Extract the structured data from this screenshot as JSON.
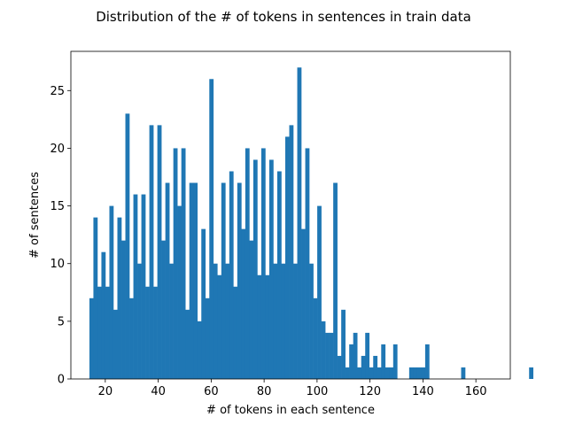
{
  "chart_data": {
    "type": "bar",
    "title": "Distribution of the # of tokens in sentences in train data",
    "xlabel": "# of tokens in each sentence",
    "ylabel": "# of sentences",
    "xlim": [
      7,
      173
    ],
    "ylim": [
      0,
      28.4
    ],
    "xticks": [
      20,
      40,
      60,
      80,
      100,
      120,
      140,
      160
    ],
    "yticks": [
      0,
      5,
      10,
      15,
      20,
      25
    ],
    "grid": false,
    "bin_start": 14,
    "bin_width": 1.51,
    "values": [
      7,
      14,
      8,
      11,
      8,
      15,
      6,
      14,
      12,
      23,
      7,
      16,
      10,
      16,
      8,
      22,
      8,
      22,
      12,
      17,
      10,
      20,
      15,
      20,
      6,
      17,
      17,
      5,
      13,
      7,
      26,
      10,
      9,
      17,
      10,
      18,
      8,
      17,
      13,
      20,
      12,
      19,
      9,
      20,
      9,
      19,
      10,
      18,
      10,
      21,
      22,
      10,
      27,
      13,
      20,
      10,
      7,
      15,
      5,
      4,
      4,
      17,
      2,
      6,
      1,
      3,
      4,
      1,
      2,
      4,
      1,
      2,
      1,
      3,
      1,
      1,
      3,
      0,
      0,
      0,
      1,
      1,
      1,
      1,
      3,
      0,
      0,
      0,
      0,
      0,
      0,
      0,
      0,
      1,
      0,
      0,
      0,
      0,
      0,
      0,
      0,
      0,
      0,
      0,
      0,
      0,
      0,
      0,
      0,
      0,
      1
    ]
  }
}
